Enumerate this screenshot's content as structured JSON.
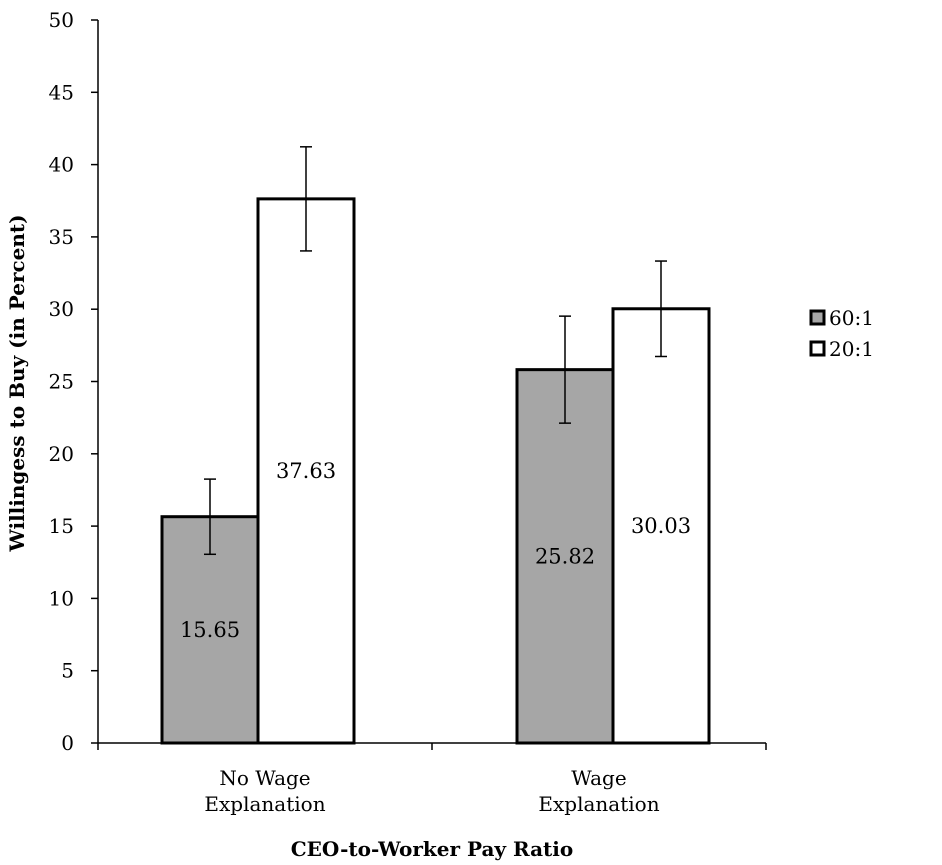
{
  "chart_data": {
    "type": "bar",
    "categories": [
      [
        "No Wage",
        "Explanation"
      ],
      [
        "Wage",
        "Explanation"
      ]
    ],
    "series": [
      {
        "name": "60:1",
        "values": [
          15.65,
          25.82
        ],
        "error": [
          2.6,
          3.7
        ],
        "color": "#a6a6a6"
      },
      {
        "name": "20:1",
        "values": [
          37.63,
          30.03
        ],
        "error": [
          3.6,
          3.3
        ],
        "color": "#ffffff"
      }
    ],
    "data_labels": [
      "15.65",
      "25.82",
      "37.63",
      "30.03"
    ],
    "xlabel": "CEO-to-Worker Pay Ratio",
    "ylabel": "Willingess to Buy (in Percent)",
    "ylim": [
      0,
      50
    ],
    "yticks": [
      0,
      5,
      10,
      15,
      20,
      25,
      30,
      35,
      40,
      45,
      50
    ],
    "grid": false,
    "legend": "right"
  }
}
